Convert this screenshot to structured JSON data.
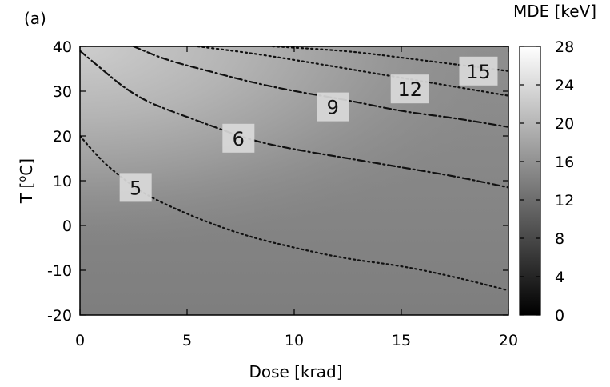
{
  "chart_data": {
    "type": "heatmap",
    "panel_label": "(a)",
    "xlabel": "Dose [krad]",
    "ylabel_main": "T [",
    "ylabel_sup": "o",
    "ylabel_tail": "C]",
    "colorbar_label": "MDE [keV]",
    "xlim": [
      0,
      20
    ],
    "ylim": [
      -20,
      40
    ],
    "xticks": [
      "0",
      "5",
      "10",
      "15",
      "20"
    ],
    "yticks": [
      "-20",
      "-10",
      "0",
      "10",
      "20",
      "30",
      "40"
    ],
    "colorbar_range": [
      0,
      28
    ],
    "colorbar_ticks": [
      "0",
      "4",
      "8",
      "12",
      "16",
      "20",
      "24",
      "28"
    ],
    "colormap": [
      "#000000",
      "#ffffff"
    ],
    "grid": false,
    "contours": [
      {
        "level": "5",
        "dash": "dotted",
        "points": [
          [
            0,
            20
          ],
          [
            1,
            14.5
          ],
          [
            2,
            10.5
          ],
          [
            3,
            7
          ],
          [
            5,
            2.5
          ],
          [
            7.5,
            -2
          ],
          [
            10,
            -5
          ],
          [
            12.5,
            -7.5
          ],
          [
            15,
            -9
          ],
          [
            17.5,
            -11.5
          ],
          [
            20,
            -14.5
          ]
        ],
        "label_at": [
          2.6,
          8.5
        ]
      },
      {
        "level": "6",
        "dash": "dashdot",
        "points": [
          [
            0,
            39
          ],
          [
            1,
            35
          ],
          [
            2,
            31
          ],
          [
            3,
            28
          ],
          [
            4,
            26
          ],
          [
            6,
            22.5
          ],
          [
            8,
            19
          ],
          [
            10,
            17
          ],
          [
            12.5,
            15
          ],
          [
            15,
            13
          ],
          [
            17.5,
            11
          ],
          [
            20,
            8.5
          ]
        ],
        "label_at": [
          7.4,
          19.5
        ]
      },
      {
        "level": "9",
        "dash": "dashdot",
        "points": [
          [
            2.5,
            40
          ],
          [
            4,
            37
          ],
          [
            6,
            34.5
          ],
          [
            8,
            32
          ],
          [
            10,
            30
          ],
          [
            12.5,
            28
          ],
          [
            15,
            25.5
          ],
          [
            17.5,
            24
          ],
          [
            20,
            22
          ]
        ],
        "label_at": [
          11.8,
          26.5
        ]
      },
      {
        "level": "12",
        "dash": "dotted",
        "points": [
          [
            5.5,
            40
          ],
          [
            8,
            38.5
          ],
          [
            10,
            37
          ],
          [
            12.5,
            35
          ],
          [
            15,
            33
          ],
          [
            17.5,
            31
          ],
          [
            20,
            29
          ]
        ],
        "label_at": [
          15.4,
          30.5
        ]
      },
      {
        "level": "15",
        "dash": "dotted",
        "points": [
          [
            9,
            40
          ],
          [
            12.5,
            39
          ],
          [
            15,
            37.5
          ],
          [
            17.5,
            36
          ],
          [
            20,
            34.5
          ]
        ],
        "label_at": [
          18.6,
          34.5
        ]
      }
    ]
  }
}
